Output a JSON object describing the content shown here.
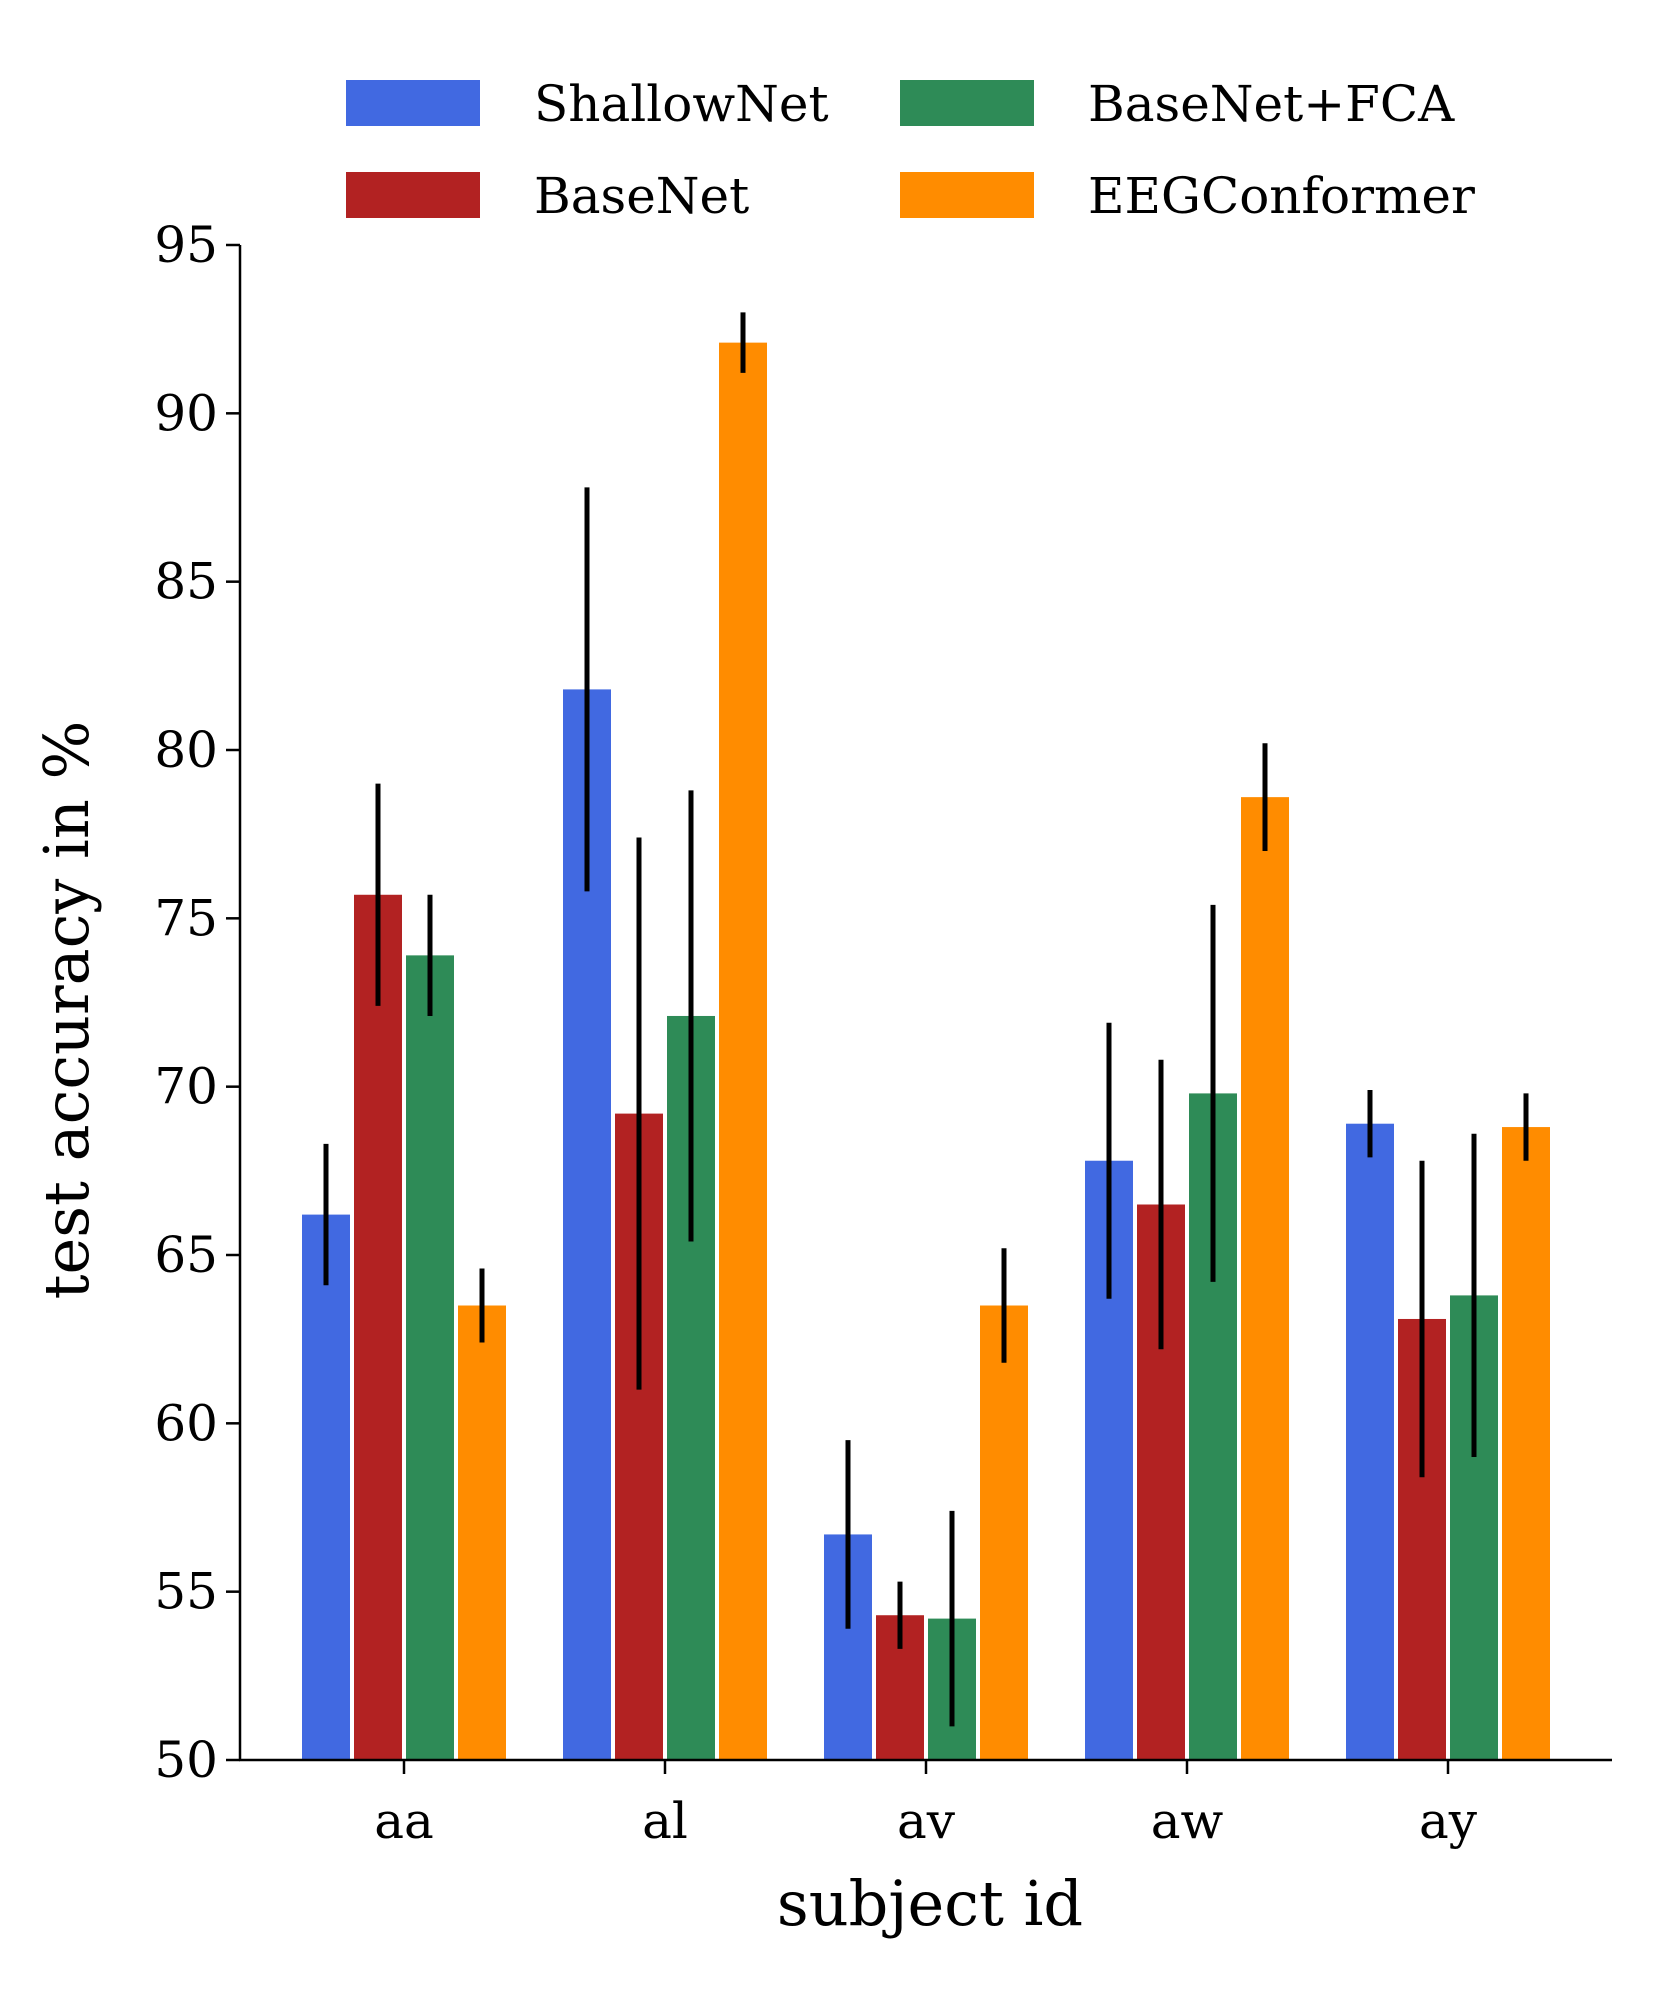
{
  "chart_data": {
    "type": "bar",
    "title": "",
    "xlabel": "subject id",
    "ylabel": "test accuracy in %",
    "categories": [
      "aa",
      "al",
      "av",
      "aw",
      "ay"
    ],
    "ylim": [
      50,
      95
    ],
    "yticks": [
      50,
      55,
      60,
      65,
      70,
      75,
      80,
      85,
      90,
      95
    ],
    "legend_position": "top",
    "series": [
      {
        "name": "ShallowNet",
        "color": "#4169E1",
        "values": [
          66.2,
          81.8,
          56.7,
          67.8,
          68.9
        ],
        "errors": [
          2.1,
          6.0,
          2.8,
          4.1,
          1.0
        ]
      },
      {
        "name": "BaseNet",
        "color": "#B22222",
        "values": [
          75.7,
          69.2,
          54.3,
          66.5,
          63.1
        ],
        "errors": [
          3.3,
          8.2,
          1.0,
          4.3,
          4.7
        ]
      },
      {
        "name": "BaseNet+FCA",
        "color": "#2E8B57",
        "values": [
          73.9,
          72.1,
          54.2,
          69.8,
          63.8
        ],
        "errors": [
          1.8,
          6.7,
          3.2,
          5.6,
          4.8
        ]
      },
      {
        "name": "EEGConformer",
        "color": "#FF8C00",
        "values": [
          63.5,
          92.1,
          63.5,
          78.6,
          68.8
        ],
        "errors": [
          1.1,
          0.9,
          1.7,
          1.6,
          1.0
        ]
      }
    ]
  }
}
